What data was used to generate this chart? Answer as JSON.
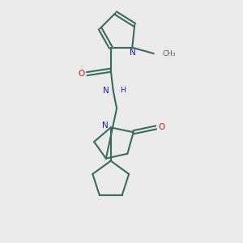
{
  "background_color": "#ebebeb",
  "bond_color": "#3d6b5a",
  "atom_colors": {
    "N": "#1a1acc",
    "O": "#cc1a1a",
    "C": "#3d6b5a"
  },
  "figsize": [
    3.0,
    3.0
  ],
  "dpi": 100,
  "xlim": [
    0,
    10
  ],
  "ylim": [
    0,
    10
  ]
}
